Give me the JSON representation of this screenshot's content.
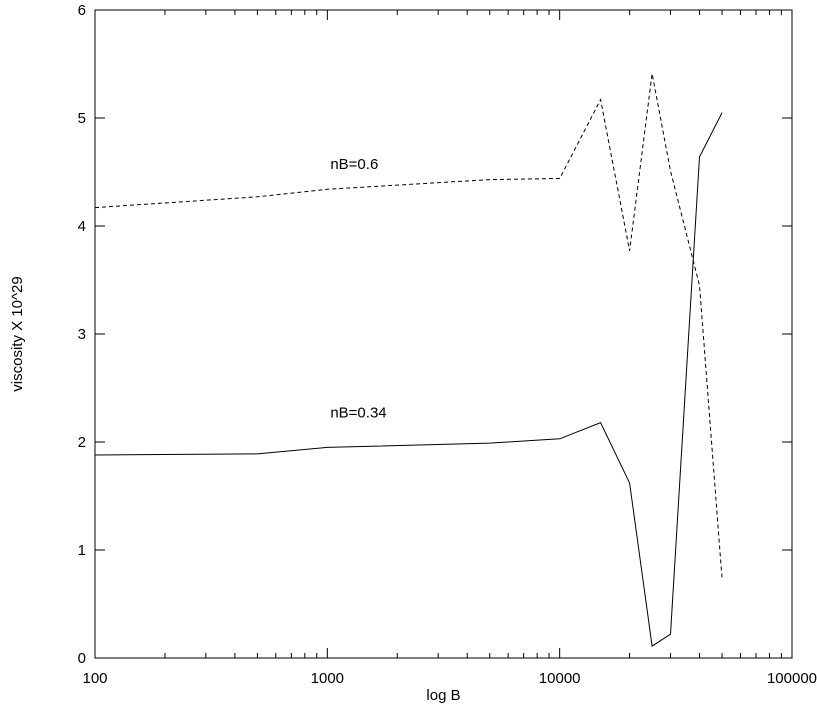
{
  "chart_data": {
    "type": "line",
    "title": "",
    "xlabel": "log B",
    "ylabel": "viscosity X 10^29",
    "x_scale": "log",
    "xlim": [
      100,
      100000
    ],
    "ylim": [
      0,
      6
    ],
    "grid": false,
    "x_ticks": [
      {
        "value": 100,
        "label": "100"
      },
      {
        "value": 1000,
        "label": "1000"
      },
      {
        "value": 10000,
        "label": "10000"
      },
      {
        "value": 100000,
        "label": "100000"
      }
    ],
    "y_ticks": [
      {
        "value": 0,
        "label": "0"
      },
      {
        "value": 1,
        "label": "1"
      },
      {
        "value": 2,
        "label": "2"
      },
      {
        "value": 3,
        "label": "3"
      },
      {
        "value": 4,
        "label": "4"
      },
      {
        "value": 5,
        "label": "5"
      },
      {
        "value": 6,
        "label": "6"
      }
    ],
    "series": [
      {
        "name": "nB=0.34",
        "style": "solid",
        "color": "#000000",
        "x": [
          100,
          500,
          1000,
          5000,
          10000,
          15000,
          20000,
          25000,
          30000,
          40000,
          50000
        ],
        "y": [
          1.88,
          1.89,
          1.95,
          1.99,
          2.03,
          2.18,
          1.62,
          0.11,
          0.22,
          4.64,
          5.05
        ]
      },
      {
        "name": "nB=0.6",
        "style": "dashed",
        "color": "#000000",
        "x": [
          100,
          500,
          1000,
          5000,
          10000,
          15000,
          20000,
          25000,
          30000,
          40000,
          50000
        ],
        "y": [
          4.17,
          4.27,
          4.34,
          4.43,
          4.44,
          5.17,
          3.77,
          5.41,
          4.51,
          3.45,
          0.73
        ]
      }
    ],
    "annotations": [
      {
        "text": "nB=0.6",
        "x": 1000,
        "y": 4.5
      },
      {
        "text": "nB=0.34",
        "x": 1000,
        "y": 2.2
      }
    ]
  }
}
